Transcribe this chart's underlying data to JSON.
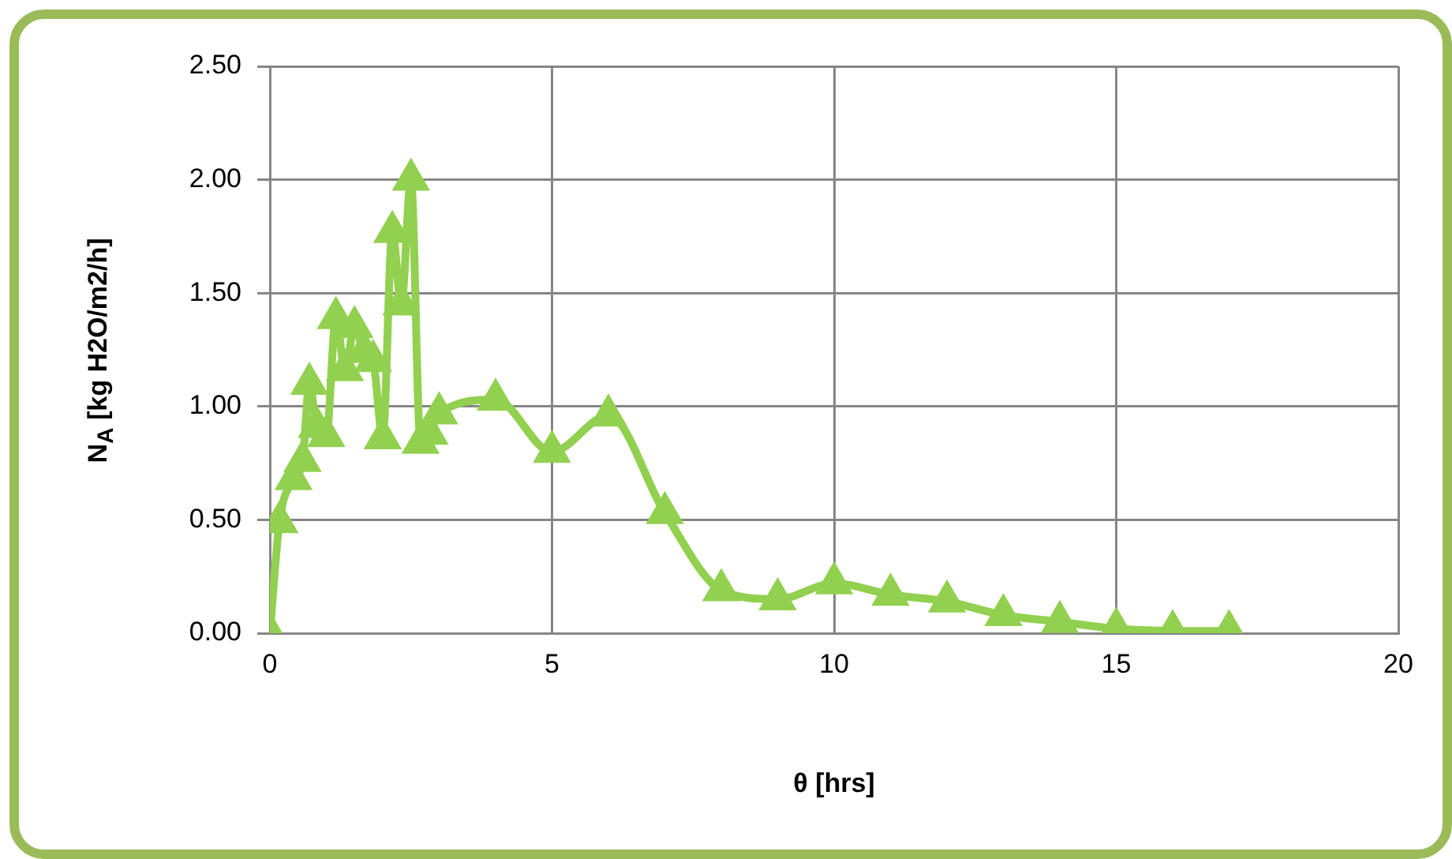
{
  "chart_data": {
    "type": "line",
    "xlabel": "θ [hrs]",
    "ylabel": "N$_{A}$ [kg H2O/m2/h]",
    "series": [
      {
        "color": "#92d050",
        "x": [
          0,
          0.17,
          0.42,
          0.58,
          0.7,
          0.83,
          1.0,
          1.17,
          1.33,
          1.5,
          1.67,
          1.83,
          2.0,
          2.17,
          2.33,
          2.5,
          2.67,
          2.83,
          3,
          4,
          5,
          6,
          7,
          8,
          9,
          10,
          11,
          12,
          13,
          14,
          15,
          16,
          17
        ],
        "values": [
          0,
          0.49,
          0.68,
          0.76,
          1.1,
          0.91,
          0.87,
          1.39,
          1.16,
          1.35,
          1.24,
          1.2,
          0.86,
          1.77,
          1.45,
          2.0,
          0.84,
          0.88,
          0.97,
          1.03,
          0.8,
          0.96,
          0.53,
          0.19,
          0.15,
          0.22,
          0.17,
          0.14,
          0.08,
          0.05,
          0.02,
          0.01,
          0.01
        ]
      }
    ],
    "xlim": [
      0,
      20
    ],
    "xticks": [
      0,
      5,
      10,
      15,
      20
    ],
    "ylim": [
      0,
      2.5
    ],
    "yticks": [
      {
        "value": 0,
        "label": "0.00"
      },
      {
        "value": 0.5,
        "label": "0.50"
      },
      {
        "value": 1,
        "label": "1.00"
      },
      {
        "value": 1.5,
        "label": "1.50"
      },
      {
        "value": 2,
        "label": "2.00"
      },
      {
        "value": 2.5,
        "label": "2.50"
      }
    ],
    "grid": true,
    "legend": false,
    "marker": "triangle",
    "line_style": "solid"
  }
}
